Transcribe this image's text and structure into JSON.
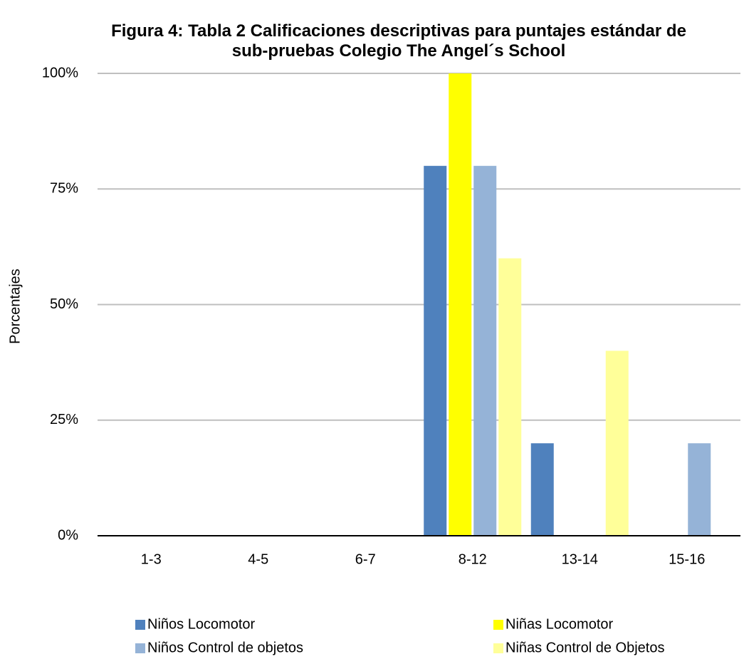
{
  "chart_data": {
    "type": "bar",
    "title": "Figura 4: Tabla 2 Calificaciones descriptivas para puntajes estándar de sub-pruebas Colegio The Angel´s School",
    "y_label": "Porcentajes",
    "categories": [
      "1-3",
      "4-5",
      "6-7",
      "8-12",
      "13-14",
      "15-16"
    ],
    "series": [
      {
        "name": "Niños Locomotor",
        "color": "#4f81bd",
        "values": [
          0,
          0,
          0,
          80,
          20,
          0
        ]
      },
      {
        "name": "Niñas Locomotor",
        "color": "#ffff00",
        "values": [
          0,
          0,
          0,
          100,
          0,
          0
        ]
      },
      {
        "name": "Niños Control de objetos",
        "color": "#95b3d7",
        "values": [
          0,
          0,
          0,
          80,
          0,
          20
        ]
      },
      {
        "name": "Niñas Control de Objetos",
        "color": "#ffff99",
        "values": [
          0,
          0,
          0,
          60,
          40,
          0
        ]
      }
    ],
    "ylim": [
      0,
      100
    ],
    "yticks": [
      {
        "value": 0,
        "label": "0%"
      },
      {
        "value": 25,
        "label": "25%"
      },
      {
        "value": 50,
        "label": "50%"
      },
      {
        "value": 75,
        "label": "75%"
      },
      {
        "value": 100,
        "label": "100%"
      }
    ],
    "grid": true,
    "legend": "bottom"
  }
}
